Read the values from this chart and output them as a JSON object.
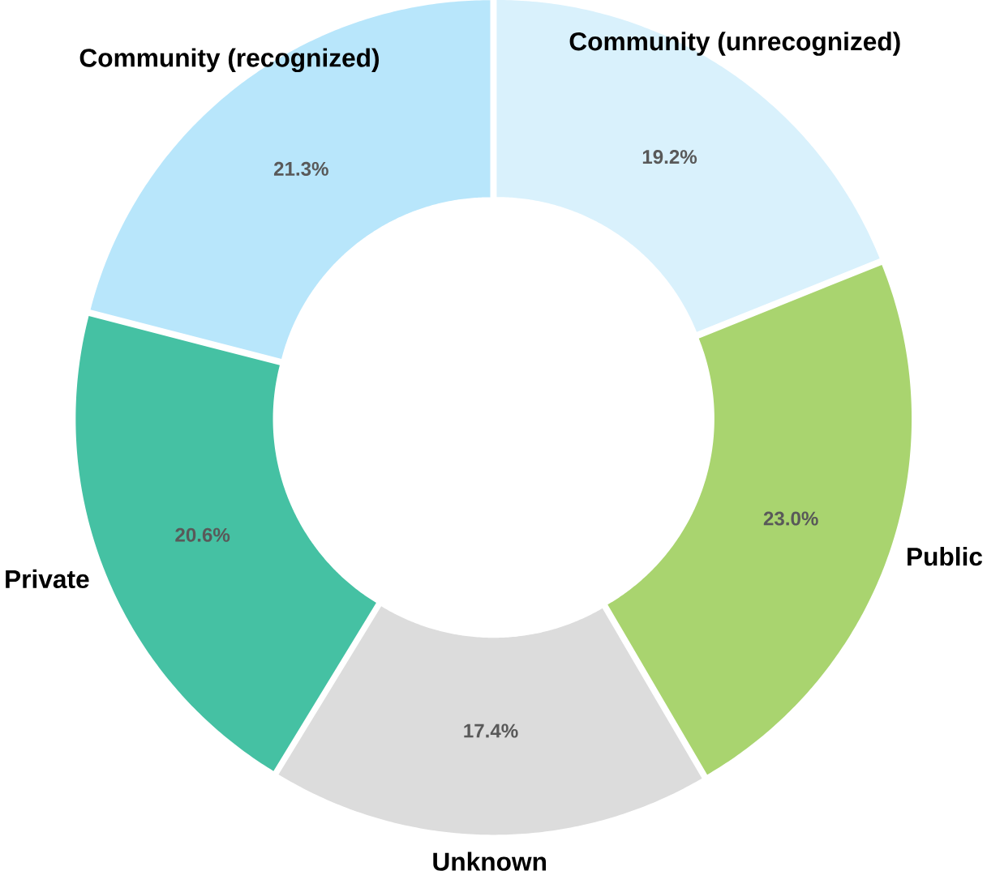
{
  "chart_data": {
    "type": "donut",
    "categories": [
      "Community (unrecognized)",
      "Public",
      "Unknown",
      "Private",
      "Community (recognized)"
    ],
    "values": [
      19.2,
      23.0,
      17.4,
      20.6,
      21.3
    ],
    "value_labels": [
      "19.2%",
      "23.0%",
      "17.4%",
      "20.6%",
      "21.3%"
    ],
    "colors": [
      "#d9f1fc",
      "#a9d46f",
      "#dcdcdc",
      "#45c1a3",
      "#b8e6fb"
    ]
  }
}
